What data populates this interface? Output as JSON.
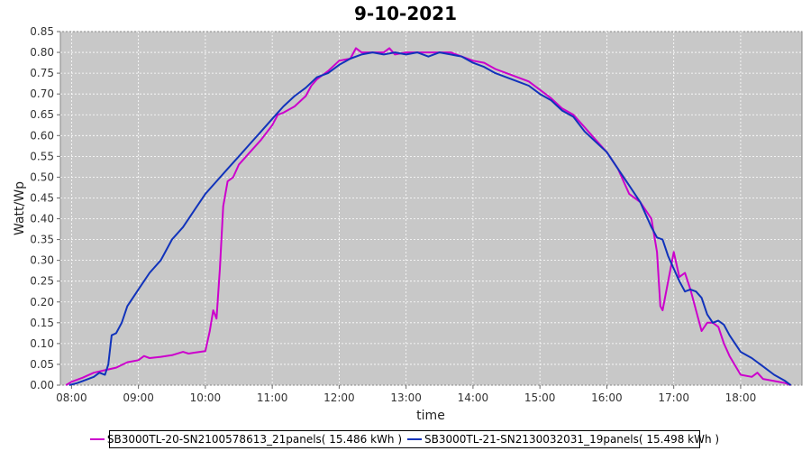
{
  "chart_data": {
    "type": "line",
    "title": "9-10-2021",
    "xlabel": "time",
    "ylabel": "Watt/Wp",
    "xlim": [
      "07:50",
      "18:55"
    ],
    "ylim": [
      0,
      0.85
    ],
    "x_ticks": [
      "08:00",
      "09:00",
      "10:00",
      "11:00",
      "12:00",
      "13:00",
      "14:00",
      "15:00",
      "16:00",
      "17:00",
      "18:00"
    ],
    "y_ticks": [
      "0.00",
      "0.05",
      "0.10",
      "0.15",
      "0.20",
      "0.25",
      "0.30",
      "0.35",
      "0.40",
      "0.45",
      "0.50",
      "0.55",
      "0.60",
      "0.65",
      "0.70",
      "0.75",
      "0.80",
      "0.85"
    ],
    "grid": true,
    "background": "#c8c8c8",
    "legend_position": "bottom",
    "series": [
      {
        "name": "SB3000TL-20-SN2100578613_21panels( 15.486 kWh )",
        "color": "#cc00cc",
        "points": [
          [
            "07:55",
            0.0
          ],
          [
            "08:00",
            0.008
          ],
          [
            "08:10",
            0.018
          ],
          [
            "08:20",
            0.03
          ],
          [
            "08:30",
            0.036
          ],
          [
            "08:40",
            0.042
          ],
          [
            "08:50",
            0.055
          ],
          [
            "09:00",
            0.06
          ],
          [
            "09:05",
            0.07
          ],
          [
            "09:10",
            0.065
          ],
          [
            "09:20",
            0.068
          ],
          [
            "09:30",
            0.072
          ],
          [
            "09:40",
            0.08
          ],
          [
            "09:45",
            0.076
          ],
          [
            "09:50",
            0.078
          ],
          [
            "10:00",
            0.082
          ],
          [
            "10:04",
            0.13
          ],
          [
            "10:07",
            0.18
          ],
          [
            "10:10",
            0.16
          ],
          [
            "10:13",
            0.28
          ],
          [
            "10:16",
            0.43
          ],
          [
            "10:20",
            0.49
          ],
          [
            "10:25",
            0.5
          ],
          [
            "10:30",
            0.53
          ],
          [
            "10:40",
            0.56
          ],
          [
            "10:50",
            0.59
          ],
          [
            "11:00",
            0.625
          ],
          [
            "11:05",
            0.65
          ],
          [
            "11:10",
            0.655
          ],
          [
            "11:20",
            0.67
          ],
          [
            "11:30",
            0.695
          ],
          [
            "11:35",
            0.72
          ],
          [
            "11:40",
            0.735
          ],
          [
            "11:50",
            0.755
          ],
          [
            "12:00",
            0.78
          ],
          [
            "12:10",
            0.785
          ],
          [
            "12:15",
            0.81
          ],
          [
            "12:20",
            0.8
          ],
          [
            "12:30",
            0.8
          ],
          [
            "12:40",
            0.8
          ],
          [
            "12:45",
            0.81
          ],
          [
            "12:50",
            0.795
          ],
          [
            "13:00",
            0.8
          ],
          [
            "13:10",
            0.8
          ],
          [
            "13:20",
            0.8
          ],
          [
            "13:30",
            0.8
          ],
          [
            "13:40",
            0.8
          ],
          [
            "13:50",
            0.79
          ],
          [
            "14:00",
            0.78
          ],
          [
            "14:10",
            0.775
          ],
          [
            "14:20",
            0.76
          ],
          [
            "14:30",
            0.75
          ],
          [
            "14:40",
            0.74
          ],
          [
            "14:50",
            0.73
          ],
          [
            "15:00",
            0.71
          ],
          [
            "15:10",
            0.69
          ],
          [
            "15:20",
            0.665
          ],
          [
            "15:30",
            0.65
          ],
          [
            "15:40",
            0.62
          ],
          [
            "15:50",
            0.59
          ],
          [
            "16:00",
            0.56
          ],
          [
            "16:10",
            0.52
          ],
          [
            "16:20",
            0.46
          ],
          [
            "16:30",
            0.44
          ],
          [
            "16:40",
            0.4
          ],
          [
            "16:45",
            0.32
          ],
          [
            "16:48",
            0.19
          ],
          [
            "16:50",
            0.18
          ],
          [
            "16:55",
            0.25
          ],
          [
            "17:00",
            0.32
          ],
          [
            "17:05",
            0.26
          ],
          [
            "17:10",
            0.27
          ],
          [
            "17:15",
            0.23
          ],
          [
            "17:20",
            0.18
          ],
          [
            "17:25",
            0.13
          ],
          [
            "17:30",
            0.15
          ],
          [
            "17:35",
            0.15
          ],
          [
            "17:40",
            0.14
          ],
          [
            "17:45",
            0.1
          ],
          [
            "17:50",
            0.07
          ],
          [
            "18:00",
            0.025
          ],
          [
            "18:10",
            0.02
          ],
          [
            "18:15",
            0.03
          ],
          [
            "18:20",
            0.015
          ],
          [
            "18:30",
            0.01
          ],
          [
            "18:40",
            0.005
          ],
          [
            "18:45",
            0.0
          ]
        ]
      },
      {
        "name": "SB3000TL-21-SN2130032031_19panels( 15.498 kWh )",
        "color": "#1133bb",
        "points": [
          [
            "07:58",
            0.0
          ],
          [
            "08:05",
            0.005
          ],
          [
            "08:10",
            0.01
          ],
          [
            "08:20",
            0.02
          ],
          [
            "08:25",
            0.03
          ],
          [
            "08:30",
            0.025
          ],
          [
            "08:33",
            0.05
          ],
          [
            "08:36",
            0.12
          ],
          [
            "08:40",
            0.125
          ],
          [
            "08:45",
            0.15
          ],
          [
            "08:50",
            0.19
          ],
          [
            "09:00",
            0.23
          ],
          [
            "09:10",
            0.27
          ],
          [
            "09:20",
            0.3
          ],
          [
            "09:30",
            0.35
          ],
          [
            "09:40",
            0.38
          ],
          [
            "09:50",
            0.42
          ],
          [
            "10:00",
            0.46
          ],
          [
            "10:10",
            0.49
          ],
          [
            "10:20",
            0.52
          ],
          [
            "10:30",
            0.55
          ],
          [
            "10:40",
            0.58
          ],
          [
            "10:50",
            0.61
          ],
          [
            "11:00",
            0.64
          ],
          [
            "11:10",
            0.67
          ],
          [
            "11:20",
            0.695
          ],
          [
            "11:30",
            0.715
          ],
          [
            "11:40",
            0.74
          ],
          [
            "11:50",
            0.75
          ],
          [
            "12:00",
            0.77
          ],
          [
            "12:10",
            0.785
          ],
          [
            "12:20",
            0.795
          ],
          [
            "12:30",
            0.8
          ],
          [
            "12:40",
            0.795
          ],
          [
            "12:50",
            0.8
          ],
          [
            "13:00",
            0.795
          ],
          [
            "13:10",
            0.8
          ],
          [
            "13:20",
            0.79
          ],
          [
            "13:30",
            0.8
          ],
          [
            "13:40",
            0.795
          ],
          [
            "13:50",
            0.79
          ],
          [
            "14:00",
            0.775
          ],
          [
            "14:10",
            0.765
          ],
          [
            "14:20",
            0.75
          ],
          [
            "14:30",
            0.74
          ],
          [
            "14:40",
            0.73
          ],
          [
            "14:50",
            0.72
          ],
          [
            "15:00",
            0.7
          ],
          [
            "15:10",
            0.685
          ],
          [
            "15:20",
            0.66
          ],
          [
            "15:30",
            0.645
          ],
          [
            "15:40",
            0.61
          ],
          [
            "15:50",
            0.585
          ],
          [
            "16:00",
            0.56
          ],
          [
            "16:10",
            0.52
          ],
          [
            "16:20",
            0.48
          ],
          [
            "16:30",
            0.44
          ],
          [
            "16:40",
            0.38
          ],
          [
            "16:45",
            0.355
          ],
          [
            "16:50",
            0.35
          ],
          [
            "16:55",
            0.31
          ],
          [
            "17:00",
            0.28
          ],
          [
            "17:05",
            0.25
          ],
          [
            "17:10",
            0.225
          ],
          [
            "17:15",
            0.23
          ],
          [
            "17:20",
            0.225
          ],
          [
            "17:25",
            0.21
          ],
          [
            "17:30",
            0.17
          ],
          [
            "17:35",
            0.15
          ],
          [
            "17:40",
            0.155
          ],
          [
            "17:45",
            0.145
          ],
          [
            "17:50",
            0.12
          ],
          [
            "18:00",
            0.08
          ],
          [
            "18:10",
            0.065
          ],
          [
            "18:20",
            0.045
          ],
          [
            "18:30",
            0.025
          ],
          [
            "18:40",
            0.01
          ],
          [
            "18:45",
            0.0
          ]
        ]
      }
    ]
  },
  "legend": {
    "items": [
      {
        "label": "SB3000TL-20-SN2100578613_21panels( 15.486 kWh )",
        "color": "#cc00cc"
      },
      {
        "label": "SB3000TL-21-SN2130032031_19panels( 15.498 kWh )",
        "color": "#1133bb"
      }
    ]
  }
}
